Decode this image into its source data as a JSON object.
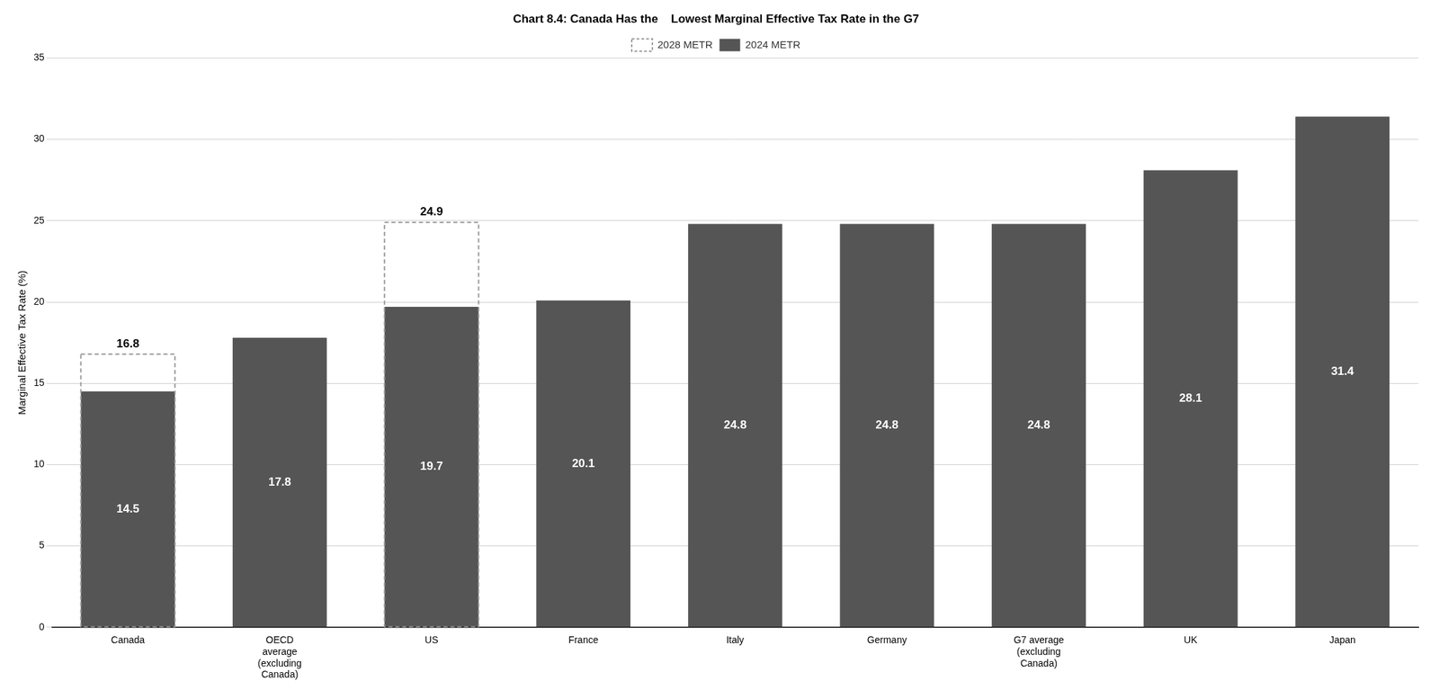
{
  "chart_data": {
    "type": "bar",
    "title": "Chart 8.4: Canada Has the    Lowest Marginal Effective Tax Rate in the G7",
    "categories": [
      "Canada",
      "OECD\naverage\n(excluding\nCanada)",
      "US",
      "France",
      "Italy",
      "Germany",
      "G7 average\n(excluding\nCanada)",
      "UK",
      "Japan"
    ],
    "series": [
      {
        "name": "2024 METR",
        "color": "#555555",
        "values": [
          14.5,
          17.8,
          19.7,
          20.1,
          24.8,
          24.8,
          24.8,
          28.1,
          31.4
        ]
      },
      {
        "name": "2028 METR",
        "color": "#999999",
        "line_style": "dashed",
        "values": [
          16.8,
          null,
          24.9,
          null,
          null,
          null,
          null,
          null,
          null
        ]
      }
    ],
    "ylabel": "Marginal Effective Tax Rate (%)",
    "ylim": [
      0,
      35
    ],
    "yticks": [
      0,
      5,
      10,
      15,
      20,
      25,
      30,
      35
    ],
    "grid": true,
    "legend": "top",
    "data_labels": true
  }
}
